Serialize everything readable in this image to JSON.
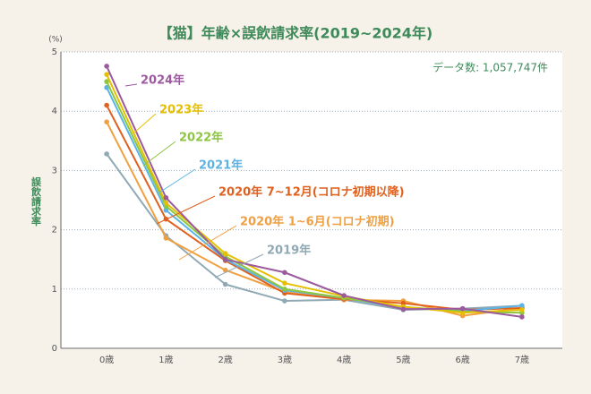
{
  "chart_data": {
    "type": "line",
    "title": "【猫】年齢×誤飲請求率(2019~2024年)",
    "y_unit": "(%)",
    "ylabel": "誤飲請求率",
    "annotation": "データ数: 1,057,747件",
    "categories": [
      "0歳",
      "1歳",
      "2歳",
      "3歳",
      "4歳",
      "5歳",
      "6歳",
      "7歳"
    ],
    "ylim": [
      0,
      5
    ],
    "yticks": [
      0,
      1,
      2,
      3,
      4,
      5
    ],
    "grid": true,
    "series": [
      {
        "name": "2024年",
        "color": "#9b5a9e",
        "values": [
          4.76,
          2.54,
          1.5,
          1.28,
          0.89,
          0.66,
          0.67,
          0.53
        ]
      },
      {
        "name": "2023年",
        "color": "#e6c000",
        "values": [
          4.62,
          2.45,
          1.6,
          1.1,
          0.88,
          0.7,
          0.6,
          0.65
        ]
      },
      {
        "name": "2022年",
        "color": "#8dc63f",
        "values": [
          4.5,
          2.4,
          1.55,
          1.0,
          0.85,
          0.7,
          0.62,
          0.6
        ]
      },
      {
        "name": "2021年",
        "color": "#5bb4e5",
        "values": [
          4.4,
          2.33,
          1.5,
          0.98,
          0.85,
          0.68,
          0.63,
          0.72
        ]
      },
      {
        "name": "2020年 7~12月(コロナ初期以降)",
        "color": "#e0601e",
        "values": [
          4.1,
          2.18,
          1.48,
          0.93,
          0.83,
          0.76,
          0.65,
          0.68
        ]
      },
      {
        "name": "2020年 1~6月(コロナ初期)",
        "color": "#f0a040",
        "values": [
          3.82,
          1.86,
          1.32,
          0.95,
          0.82,
          0.8,
          0.55,
          0.68
        ]
      },
      {
        "name": "2019年",
        "color": "#8fa9b5",
        "values": [
          3.28,
          1.9,
          1.08,
          0.8,
          0.82,
          0.65,
          0.67,
          0.72
        ]
      }
    ]
  }
}
